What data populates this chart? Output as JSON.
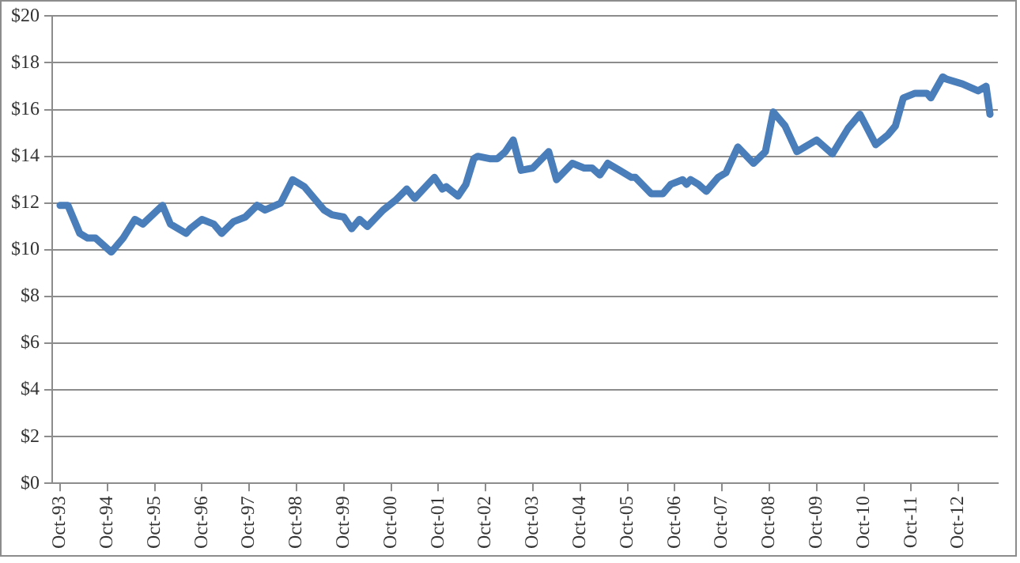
{
  "chart_data": {
    "type": "line",
    "grid": "y",
    "legend": false,
    "marker": "none",
    "line_style": "solid",
    "x": [
      "1993-10",
      "1993-12",
      "1994-03",
      "1994-05",
      "1994-07",
      "1994-11",
      "1995-02",
      "1995-05",
      "1995-07",
      "1995-12",
      "1996-02",
      "1996-06",
      "1996-07",
      "1996-10",
      "1997-01",
      "1997-03",
      "1997-06",
      "1997-09",
      "1997-12",
      "1998-02",
      "1998-06",
      "1998-09",
      "1998-12",
      "1999-05",
      "1999-07",
      "1999-10",
      "1999-12",
      "2000-02",
      "2000-04",
      "2000-08",
      "2000-11",
      "2001-02",
      "2001-04",
      "2001-09",
      "2001-11",
      "2001-12",
      "2002-03",
      "2002-05",
      "2002-07",
      "2002-08",
      "2002-11",
      "2003-01",
      "2003-03",
      "2003-05",
      "2003-07",
      "2003-10",
      "2004-02",
      "2004-04",
      "2004-08",
      "2004-11",
      "2005-01",
      "2005-03",
      "2005-05",
      "2005-08",
      "2005-11",
      "2005-12",
      "2006-04",
      "2006-07",
      "2006-09",
      "2006-12",
      "2007-01",
      "2007-02",
      "2007-04",
      "2007-06",
      "2007-09",
      "2007-11",
      "2008-02",
      "2008-06",
      "2008-09",
      "2008-11",
      "2009-02",
      "2009-05",
      "2009-10",
      "2010-02",
      "2010-06",
      "2010-09",
      "2011-01",
      "2011-04",
      "2011-06",
      "2011-08",
      "2011-11",
      "2012-02",
      "2012-03",
      "2012-06",
      "2012-07",
      "2012-11",
      "2013-03",
      "2013-05",
      "2013-06"
    ],
    "series": [
      {
        "color": "#4a7ebb",
        "values": [
          11.9,
          11.9,
          10.7,
          10.5,
          10.5,
          9.9,
          10.5,
          11.3,
          11.1,
          11.9,
          11.1,
          10.7,
          10.9,
          11.3,
          11.1,
          10.7,
          11.2,
          11.4,
          11.9,
          11.7,
          12.0,
          13.0,
          12.7,
          11.7,
          11.5,
          11.4,
          10.9,
          11.3,
          11.0,
          11.7,
          12.1,
          12.6,
          12.2,
          13.1,
          12.6,
          12.7,
          12.3,
          12.8,
          13.9,
          14.0,
          13.9,
          13.9,
          14.2,
          14.7,
          13.4,
          13.5,
          14.2,
          13.0,
          13.7,
          13.5,
          13.5,
          13.2,
          13.7,
          13.4,
          13.1,
          13.1,
          12.4,
          12.4,
          12.8,
          13.0,
          12.8,
          13.0,
          12.8,
          12.5,
          13.1,
          13.3,
          14.4,
          13.7,
          14.2,
          15.9,
          15.3,
          14.2,
          14.7,
          14.1,
          15.2,
          15.8,
          14.5,
          14.9,
          15.3,
          16.5,
          16.7,
          16.7,
          16.5,
          17.4,
          17.3,
          17.1,
          16.8,
          17.0,
          15.8
        ]
      }
    ],
    "xlim": [
      "1993-08",
      "2013-08"
    ],
    "xticks": [
      {
        "value": "1993-10",
        "label": "Oct-93"
      },
      {
        "value": "1994-10",
        "label": "Oct-94"
      },
      {
        "value": "1995-10",
        "label": "Oct-95"
      },
      {
        "value": "1996-10",
        "label": "Oct-96"
      },
      {
        "value": "1997-10",
        "label": "Oct-97"
      },
      {
        "value": "1998-10",
        "label": "Oct-98"
      },
      {
        "value": "1999-10",
        "label": "Oct-99"
      },
      {
        "value": "2000-10",
        "label": "Oct-00"
      },
      {
        "value": "2001-10",
        "label": "Oct-01"
      },
      {
        "value": "2002-10",
        "label": "Oct-02"
      },
      {
        "value": "2003-10",
        "label": "Oct-03"
      },
      {
        "value": "2004-10",
        "label": "Oct-04"
      },
      {
        "value": "2005-10",
        "label": "Oct-05"
      },
      {
        "value": "2006-10",
        "label": "Oct-06"
      },
      {
        "value": "2007-10",
        "label": "Oct-07"
      },
      {
        "value": "2008-10",
        "label": "Oct-08"
      },
      {
        "value": "2009-10",
        "label": "Oct-09"
      },
      {
        "value": "2010-10",
        "label": "Oct-10"
      },
      {
        "value": "2011-10",
        "label": "Oct-11"
      },
      {
        "value": "2012-10",
        "label": "Oct-12"
      }
    ],
    "ylim": [
      0,
      20
    ],
    "yticks": [
      {
        "value": 0,
        "label": "$0"
      },
      {
        "value": 2,
        "label": "$2"
      },
      {
        "value": 4,
        "label": "$4"
      },
      {
        "value": 6,
        "label": "$6"
      },
      {
        "value": 8,
        "label": "$8"
      },
      {
        "value": 10,
        "label": "$10"
      },
      {
        "value": 12,
        "label": "$12"
      },
      {
        "value": 14,
        "label": "$14"
      },
      {
        "value": 16,
        "label": "$16"
      },
      {
        "value": 18,
        "label": "$18"
      },
      {
        "value": 20,
        "label": "$20"
      }
    ]
  }
}
